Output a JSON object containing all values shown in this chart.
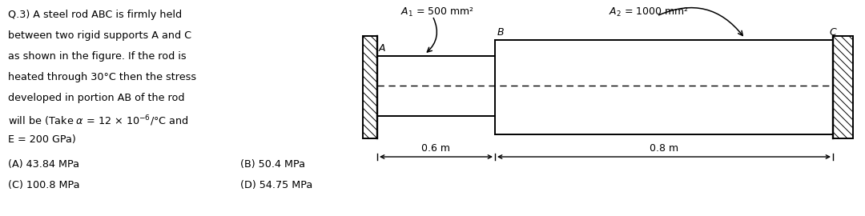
{
  "bg_color": "#ffffff",
  "text_color": "#000000",
  "question_line1": "Q.3) A steel rod ",
  "question_line1b": "ABC",
  "question_text_plain": "Q.3) A steel rod ABC is firmly held\nbetween two rigid supports A and C\nas shown in the figure. If the rod is\nheated through 30°C then the stress\ndeveloped in portion AB of the rod\nwill be (Take α = 12 × 10⁻⁶/°C and\nE = 200 GPa)",
  "option_A": "(A) 43.84 MPa",
  "option_B": "(B) 50.4 MPa",
  "option_C": "(C) 100.8 MPa",
  "option_D": "(D) 54.75 MPa",
  "label_A1": "A₁ = 500 mm²",
  "label_A2": "A₂ = 1000 mm²",
  "label_pt_A": "A",
  "label_pt_B": "B",
  "label_pt_C": "C",
  "dim_AB": "0.6 m",
  "dim_BC": "0.8 m"
}
